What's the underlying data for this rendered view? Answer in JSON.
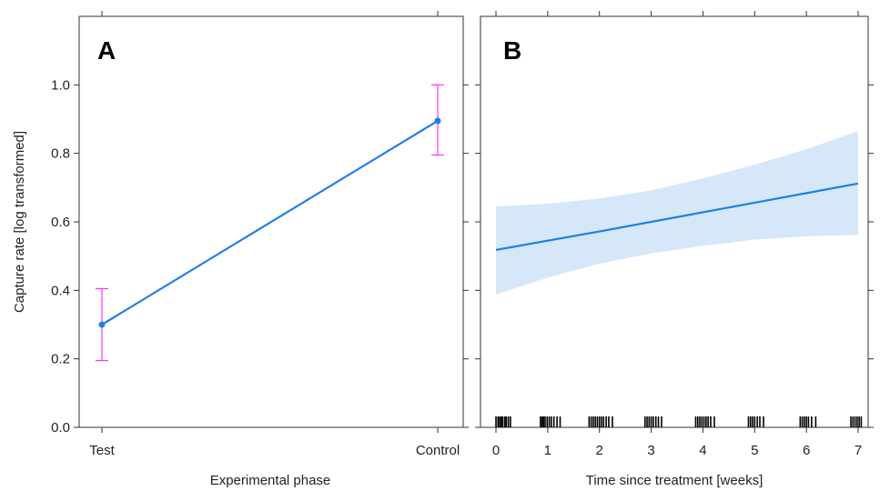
{
  "figure": {
    "shared_ylabel": "Capture rate [log transformed]"
  },
  "chart_data": [
    {
      "panel": "A",
      "type": "line",
      "xlabel": "Experimental phase",
      "ylabel": "Capture rate [log transformed]",
      "categories": [
        "Test",
        "Control"
      ],
      "values": [
        0.3,
        0.895
      ],
      "error_lower": [
        0.195,
        0.795
      ],
      "error_upper": [
        0.405,
        1.0
      ],
      "ylim": [
        0,
        1.2
      ],
      "yticks": [
        0.0,
        0.2,
        0.4,
        0.6,
        0.8,
        1.0
      ],
      "ytick_labels": [
        "0.0",
        "0.2",
        "0.4",
        "0.6",
        "0.8",
        "1.0"
      ],
      "line_color": "#1f7fe6",
      "error_color": "#ff33ff",
      "grid": false
    },
    {
      "panel": "B",
      "type": "line",
      "xlabel": "Time since treatment [weeks]",
      "ylim": [
        0,
        1.2
      ],
      "xlim": [
        -0.25,
        7.1
      ],
      "xticks": [
        0,
        1,
        2,
        3,
        4,
        5,
        6,
        7
      ],
      "xtick_labels": [
        "0",
        "1",
        "2",
        "3",
        "4",
        "5",
        "6",
        "7"
      ],
      "x": [
        0,
        1,
        2,
        3,
        4,
        5,
        6,
        7
      ],
      "y": [
        0.518,
        0.545,
        0.572,
        0.6,
        0.628,
        0.656,
        0.684,
        0.712
      ],
      "ci_lower": [
        0.388,
        0.437,
        0.478,
        0.508,
        0.53,
        0.548,
        0.558,
        0.562
      ],
      "ci_upper": [
        0.645,
        0.653,
        0.668,
        0.692,
        0.727,
        0.767,
        0.812,
        0.865
      ],
      "rug": [
        0,
        0.04,
        0.07,
        0.1,
        0.13,
        0.17,
        0.2,
        0.24,
        0.28,
        0.86,
        0.89,
        0.92,
        0.95,
        0.99,
        1.03,
        1.07,
        1.12,
        1.18,
        1.24,
        1.8,
        1.84,
        1.88,
        1.92,
        1.96,
        2.0,
        2.04,
        2.08,
        2.13,
        2.18,
        2.25,
        2.88,
        2.92,
        2.96,
        3.0,
        3.04,
        3.09,
        3.14,
        3.2,
        3.86,
        3.9,
        3.94,
        3.98,
        4.02,
        4.06,
        4.1,
        4.15,
        4.22,
        4.88,
        4.92,
        4.96,
        5.0,
        5.05,
        5.1,
        5.17,
        5.88,
        5.92,
        5.96,
        6.0,
        6.04,
        6.1,
        6.18,
        6.86,
        6.9,
        6.94,
        6.98,
        7.02,
        7.06
      ],
      "line_color": "#1f7fe6",
      "band_color": "#d6e7fa",
      "grid": false
    }
  ]
}
